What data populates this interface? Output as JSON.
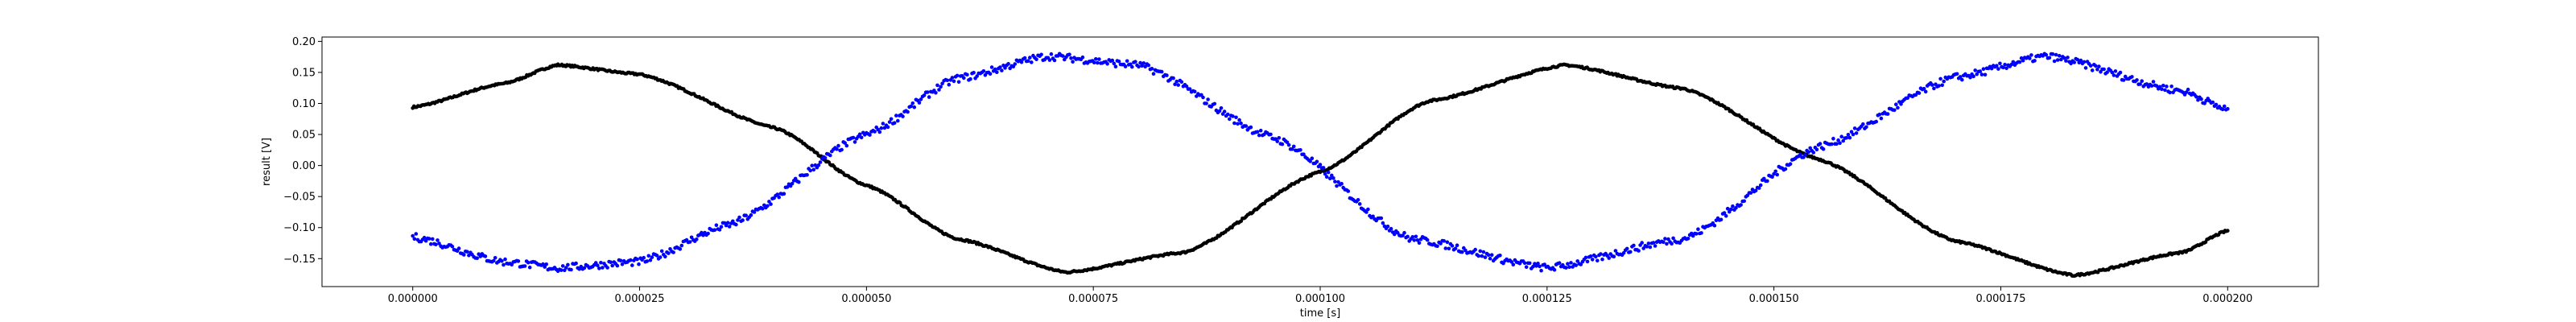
{
  "chart_data": {
    "type": "scatter",
    "xlabel": "time [s]",
    "ylabel": "result [V]",
    "xlim": [
      -1e-05,
      0.00021
    ],
    "ylim": [
      -0.195,
      0.207
    ],
    "grid": false,
    "x_ticks": [
      0.0,
      2.5e-05,
      5e-05,
      7.5e-05,
      0.0001,
      0.000125,
      0.00015,
      0.000175,
      0.0002
    ],
    "x_tick_labels": [
      "0.000000",
      "0.000025",
      "0.000050",
      "0.000075",
      "0.000100",
      "0.000125",
      "0.000150",
      "0.000175",
      "0.000200"
    ],
    "y_ticks": [
      -0.15,
      -0.1,
      -0.05,
      0.0,
      0.05,
      0.1,
      0.15,
      0.2
    ],
    "y_tick_labels": [
      "−0.15",
      "−0.10",
      "−0.05",
      "0.00",
      "0.05",
      "0.10",
      "0.15",
      "0.20"
    ],
    "x_range": [
      0.0,
      0.0002
    ],
    "series": [
      {
        "color": "#000000",
        "points": [
          [
            0.0,
            0.094
          ],
          [
            1e-05,
            0.132
          ],
          [
            1.6e-05,
            0.162
          ],
          [
            2.5e-05,
            0.147
          ],
          [
            4e-05,
            0.06
          ],
          [
            5e-05,
            -0.032
          ],
          [
            6e-05,
            -0.118
          ],
          [
            7.2e-05,
            -0.172
          ],
          [
            8.5e-05,
            -0.14
          ],
          [
            0.0001,
            -0.01
          ],
          [
            0.000112,
            0.104
          ],
          [
            0.000127,
            0.162
          ],
          [
            0.00014,
            0.124
          ],
          [
            0.000155,
            0.01
          ],
          [
            0.00017,
            -0.122
          ],
          [
            0.000183,
            -0.177
          ],
          [
            0.000195,
            -0.14
          ],
          [
            0.0002,
            -0.105
          ]
        ]
      },
      {
        "color": "#0000ff",
        "points": [
          [
            0.0,
            -0.115
          ],
          [
            1e-05,
            -0.155
          ],
          [
            1.6e-05,
            -0.165
          ],
          [
            2.5e-05,
            -0.155
          ],
          [
            3.5e-05,
            -0.095
          ],
          [
            5e-05,
            0.05
          ],
          [
            6e-05,
            0.14
          ],
          [
            7e-05,
            0.176
          ],
          [
            8e-05,
            0.162
          ],
          [
            9.5e-05,
            0.044
          ],
          [
            0.00011,
            -0.118
          ],
          [
            0.000125,
            -0.165
          ],
          [
            0.00014,
            -0.118
          ],
          [
            0.000155,
            0.03
          ],
          [
            0.00017,
            0.142
          ],
          [
            0.00018,
            0.176
          ],
          [
            0.000195,
            0.12
          ],
          [
            0.0002,
            0.09
          ]
        ]
      }
    ]
  }
}
